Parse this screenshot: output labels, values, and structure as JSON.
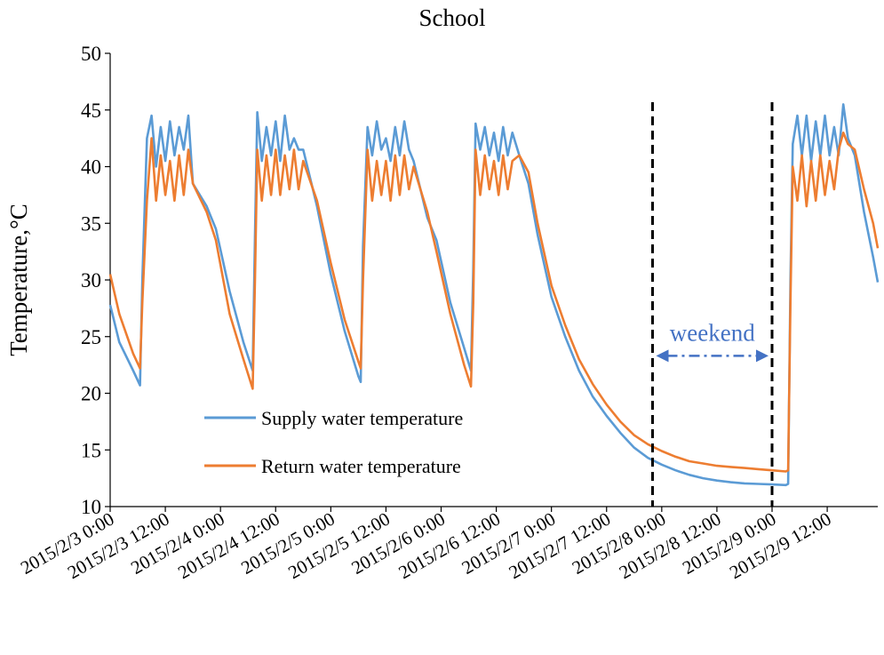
{
  "chart_data": {
    "type": "line",
    "title": "School",
    "ylabel": "Temperature,°C",
    "xlabel": "",
    "ylim": [
      10,
      50
    ],
    "yticks": [
      10,
      15,
      20,
      25,
      30,
      35,
      40,
      45,
      50
    ],
    "x_range": [
      "2015/2/3 0:00",
      "2015/2/9 23:00"
    ],
    "x_tick_step_hours": 12,
    "xtick_labels": [
      "2015/2/3 0:00",
      "2015/2/3 12:00",
      "2015/2/4 0:00",
      "2015/2/4 12:00",
      "2015/2/5 0:00",
      "2015/2/5 12:00",
      "2015/2/6 0:00",
      "2015/2/6 12:00",
      "2015/2/7 0:00",
      "2015/2/7 12:00",
      "2015/2/8 0:00",
      "2015/2/8 12:00",
      "2015/2/9 0:00",
      "2015/2/9 12:00"
    ],
    "grid": false,
    "legend_position": "lower-center",
    "series": [
      {
        "name": "Supply water temperature",
        "color": "#5B9BD5",
        "points": [
          [
            "2015/2/3 0:00",
            27.8
          ],
          [
            "2015/2/3 2:00",
            24.5
          ],
          [
            "2015/2/3 5:00",
            22.0
          ],
          [
            "2015/2/3 6:30",
            20.7
          ],
          [
            "2015/2/3 7:00",
            30.0
          ],
          [
            "2015/2/3 8:00",
            42.5
          ],
          [
            "2015/2/3 9:00",
            44.5
          ],
          [
            "2015/2/3 10:00",
            40.0
          ],
          [
            "2015/2/3 11:00",
            43.5
          ],
          [
            "2015/2/3 12:00",
            40.5
          ],
          [
            "2015/2/3 13:00",
            44.0
          ],
          [
            "2015/2/3 14:00",
            41.0
          ],
          [
            "2015/2/3 15:00",
            43.5
          ],
          [
            "2015/2/3 16:00",
            41.5
          ],
          [
            "2015/2/3 17:00",
            44.5
          ],
          [
            "2015/2/3 18:00",
            38.5
          ],
          [
            "2015/2/3 21:00",
            36.5
          ],
          [
            "2015/2/3 23:00",
            34.5
          ],
          [
            "2015/2/4 2:00",
            29.0
          ],
          [
            "2015/2/4 5:00",
            24.5
          ],
          [
            "2015/2/4 7:00",
            22.0
          ],
          [
            "2015/2/4 7:30",
            34.0
          ],
          [
            "2015/2/4 8:00",
            44.8
          ],
          [
            "2015/2/4 9:00",
            40.5
          ],
          [
            "2015/2/4 10:00",
            43.5
          ],
          [
            "2015/2/4 11:00",
            41.0
          ],
          [
            "2015/2/4 12:00",
            44.0
          ],
          [
            "2015/2/4 13:00",
            40.5
          ],
          [
            "2015/2/4 14:00",
            44.5
          ],
          [
            "2015/2/4 15:00",
            41.5
          ],
          [
            "2015/2/4 16:00",
            42.5
          ],
          [
            "2015/2/4 17:00",
            41.5
          ],
          [
            "2015/2/4 18:00",
            41.5
          ],
          [
            "2015/2/4 21:00",
            36.5
          ],
          [
            "2015/2/5 0:00",
            30.5
          ],
          [
            "2015/2/5 3:00",
            25.5
          ],
          [
            "2015/2/5 6:00",
            21.5
          ],
          [
            "2015/2/5 6:30",
            21.0
          ],
          [
            "2015/2/5 7:00",
            33.0
          ],
          [
            "2015/2/5 8:00",
            43.5
          ],
          [
            "2015/2/5 9:00",
            41.0
          ],
          [
            "2015/2/5 10:00",
            44.0
          ],
          [
            "2015/2/5 11:00",
            41.5
          ],
          [
            "2015/2/5 12:00",
            42.5
          ],
          [
            "2015/2/5 13:00",
            40.5
          ],
          [
            "2015/2/5 14:00",
            43.5
          ],
          [
            "2015/2/5 15:00",
            41.0
          ],
          [
            "2015/2/5 16:00",
            44.0
          ],
          [
            "2015/2/5 17:00",
            41.5
          ],
          [
            "2015/2/5 18:00",
            40.5
          ],
          [
            "2015/2/5 21:00",
            35.5
          ],
          [
            "2015/2/5 23:00",
            33.5
          ],
          [
            "2015/2/6 2:00",
            28.0
          ],
          [
            "2015/2/6 5:00",
            24.0
          ],
          [
            "2015/2/6 6:30",
            22.0
          ],
          [
            "2015/2/6 7:00",
            31.0
          ],
          [
            "2015/2/6 7:30",
            43.8
          ],
          [
            "2015/2/6 8:30",
            41.5
          ],
          [
            "2015/2/6 9:30",
            43.5
          ],
          [
            "2015/2/6 10:30",
            41.0
          ],
          [
            "2015/2/6 11:30",
            43.0
          ],
          [
            "2015/2/6 12:30",
            40.5
          ],
          [
            "2015/2/6 13:30",
            43.5
          ],
          [
            "2015/2/6 14:30",
            41.0
          ],
          [
            "2015/2/6 15:30",
            43.0
          ],
          [
            "2015/2/6 17:00",
            41.0
          ],
          [
            "2015/2/6 19:00",
            38.5
          ],
          [
            "2015/2/6 21:00",
            34.0
          ],
          [
            "2015/2/7 0:00",
            28.5
          ],
          [
            "2015/2/7 3:00",
            25.0
          ],
          [
            "2015/2/7 6:00",
            22.0
          ],
          [
            "2015/2/7 9:00",
            19.7
          ],
          [
            "2015/2/7 12:00",
            18.0
          ],
          [
            "2015/2/7 15:00",
            16.5
          ],
          [
            "2015/2/7 18:00",
            15.2
          ],
          [
            "2015/2/7 21:00",
            14.3
          ],
          [
            "2015/2/8 0:00",
            13.7
          ],
          [
            "2015/2/8 3:00",
            13.2
          ],
          [
            "2015/2/8 6:00",
            12.8
          ],
          [
            "2015/2/8 9:00",
            12.5
          ],
          [
            "2015/2/8 12:00",
            12.3
          ],
          [
            "2015/2/8 15:00",
            12.15
          ],
          [
            "2015/2/8 18:00",
            12.05
          ],
          [
            "2015/2/8 21:00",
            12.0
          ],
          [
            "2015/2/9 0:00",
            11.95
          ],
          [
            "2015/2/9 3:00",
            11.9
          ],
          [
            "2015/2/9 3:30",
            12.0
          ],
          [
            "2015/2/9 4:00",
            30.0
          ],
          [
            "2015/2/9 4:30",
            42.0
          ],
          [
            "2015/2/9 5:30",
            44.5
          ],
          [
            "2015/2/9 6:30",
            41.0
          ],
          [
            "2015/2/9 7:30",
            44.5
          ],
          [
            "2015/2/9 8:30",
            40.5
          ],
          [
            "2015/2/9 9:30",
            44.0
          ],
          [
            "2015/2/9 10:30",
            41.0
          ],
          [
            "2015/2/9 11:30",
            44.5
          ],
          [
            "2015/2/9 12:30",
            41.0
          ],
          [
            "2015/2/9 13:30",
            43.5
          ],
          [
            "2015/2/9 14:30",
            41.0
          ],
          [
            "2015/2/9 15:30",
            45.5
          ],
          [
            "2015/2/9 16:30",
            42.5
          ],
          [
            "2015/2/9 18:00",
            41.0
          ],
          [
            "2015/2/9 20:00",
            36.0
          ],
          [
            "2015/2/9 22:00",
            32.0
          ],
          [
            "2015/2/9 23:00",
            29.8
          ]
        ]
      },
      {
        "name": "Return water temperature",
        "color": "#ED7D31",
        "points": [
          [
            "2015/2/3 0:00",
            30.5
          ],
          [
            "2015/2/3 2:00",
            27.0
          ],
          [
            "2015/2/3 5:00",
            23.5
          ],
          [
            "2015/2/3 6:30",
            22.2
          ],
          [
            "2015/2/3 7:00",
            28.0
          ],
          [
            "2015/2/3 8:00",
            37.0
          ],
          [
            "2015/2/3 9:00",
            42.5
          ],
          [
            "2015/2/3 10:00",
            37.0
          ],
          [
            "2015/2/3 11:00",
            41.0
          ],
          [
            "2015/2/3 12:00",
            37.5
          ],
          [
            "2015/2/3 13:00",
            40.5
          ],
          [
            "2015/2/3 14:00",
            37.0
          ],
          [
            "2015/2/3 15:00",
            41.0
          ],
          [
            "2015/2/3 16:00",
            37.5
          ],
          [
            "2015/2/3 17:00",
            41.5
          ],
          [
            "2015/2/3 18:00",
            38.5
          ],
          [
            "2015/2/3 21:00",
            36.0
          ],
          [
            "2015/2/3 23:00",
            33.5
          ],
          [
            "2015/2/4 2:00",
            27.0
          ],
          [
            "2015/2/4 5:00",
            23.0
          ],
          [
            "2015/2/4 7:00",
            20.4
          ],
          [
            "2015/2/4 7:30",
            30.0
          ],
          [
            "2015/2/4 8:00",
            41.5
          ],
          [
            "2015/2/4 9:00",
            37.0
          ],
          [
            "2015/2/4 10:00",
            41.0
          ],
          [
            "2015/2/4 11:00",
            37.5
          ],
          [
            "2015/2/4 12:00",
            41.5
          ],
          [
            "2015/2/4 13:00",
            37.5
          ],
          [
            "2015/2/4 14:00",
            41.0
          ],
          [
            "2015/2/4 15:00",
            38.0
          ],
          [
            "2015/2/4 16:00",
            41.5
          ],
          [
            "2015/2/4 17:00",
            38.0
          ],
          [
            "2015/2/4 18:00",
            40.5
          ],
          [
            "2015/2/4 21:00",
            37.0
          ],
          [
            "2015/2/5 0:00",
            31.5
          ],
          [
            "2015/2/5 3:00",
            26.5
          ],
          [
            "2015/2/5 6:00",
            22.8
          ],
          [
            "2015/2/5 6:30",
            22.2
          ],
          [
            "2015/2/5 7:00",
            30.0
          ],
          [
            "2015/2/5 8:00",
            41.5
          ],
          [
            "2015/2/5 9:00",
            37.0
          ],
          [
            "2015/2/5 10:00",
            40.5
          ],
          [
            "2015/2/5 11:00",
            37.5
          ],
          [
            "2015/2/5 12:00",
            40.5
          ],
          [
            "2015/2/5 13:00",
            37.0
          ],
          [
            "2015/2/5 14:00",
            41.0
          ],
          [
            "2015/2/5 15:00",
            37.5
          ],
          [
            "2015/2/5 16:00",
            41.0
          ],
          [
            "2015/2/5 17:00",
            38.0
          ],
          [
            "2015/2/5 18:00",
            40.0
          ],
          [
            "2015/2/5 21:00",
            36.0
          ],
          [
            "2015/2/5 23:00",
            32.5
          ],
          [
            "2015/2/6 2:00",
            27.0
          ],
          [
            "2015/2/6 5:00",
            22.5
          ],
          [
            "2015/2/6 6:30",
            20.6
          ],
          [
            "2015/2/6 7:00",
            28.0
          ],
          [
            "2015/2/6 7:30",
            41.5
          ],
          [
            "2015/2/6 8:30",
            37.5
          ],
          [
            "2015/2/6 9:30",
            41.0
          ],
          [
            "2015/2/6 10:30",
            38.0
          ],
          [
            "2015/2/6 11:30",
            40.5
          ],
          [
            "2015/2/6 12:30",
            37.5
          ],
          [
            "2015/2/6 13:30",
            41.0
          ],
          [
            "2015/2/6 14:30",
            38.0
          ],
          [
            "2015/2/6 15:30",
            40.5
          ],
          [
            "2015/2/6 17:00",
            41.0
          ],
          [
            "2015/2/6 19:00",
            39.5
          ],
          [
            "2015/2/6 21:00",
            35.0
          ],
          [
            "2015/2/7 0:00",
            29.5
          ],
          [
            "2015/2/7 3:00",
            26.0
          ],
          [
            "2015/2/7 6:00",
            23.0
          ],
          [
            "2015/2/7 9:00",
            20.8
          ],
          [
            "2015/2/7 12:00",
            19.0
          ],
          [
            "2015/2/7 15:00",
            17.5
          ],
          [
            "2015/2/7 18:00",
            16.3
          ],
          [
            "2015/2/7 21:00",
            15.5
          ],
          [
            "2015/2/8 0:00",
            14.9
          ],
          [
            "2015/2/8 3:00",
            14.4
          ],
          [
            "2015/2/8 6:00",
            14.0
          ],
          [
            "2015/2/8 9:00",
            13.8
          ],
          [
            "2015/2/8 12:00",
            13.6
          ],
          [
            "2015/2/8 15:00",
            13.5
          ],
          [
            "2015/2/8 18:00",
            13.4
          ],
          [
            "2015/2/8 21:00",
            13.3
          ],
          [
            "2015/2/9 0:00",
            13.2
          ],
          [
            "2015/2/9 3:00",
            13.1
          ],
          [
            "2015/2/9 3:30",
            13.2
          ],
          [
            "2015/2/9 4:00",
            28.0
          ],
          [
            "2015/2/9 4:30",
            40.0
          ],
          [
            "2015/2/9 5:30",
            37.0
          ],
          [
            "2015/2/9 6:30",
            41.0
          ],
          [
            "2015/2/9 7:30",
            36.5
          ],
          [
            "2015/2/9 8:30",
            40.5
          ],
          [
            "2015/2/9 9:30",
            37.0
          ],
          [
            "2015/2/9 10:30",
            41.0
          ],
          [
            "2015/2/9 11:30",
            37.5
          ],
          [
            "2015/2/9 12:30",
            40.5
          ],
          [
            "2015/2/9 13:30",
            38.0
          ],
          [
            "2015/2/9 14:30",
            41.5
          ],
          [
            "2015/2/9 15:30",
            43.0
          ],
          [
            "2015/2/9 16:30",
            42.0
          ],
          [
            "2015/2/9 18:00",
            41.5
          ],
          [
            "2015/2/9 20:00",
            38.0
          ],
          [
            "2015/2/9 22:00",
            35.0
          ],
          [
            "2015/2/9 23:00",
            32.8
          ]
        ]
      }
    ],
    "annotations": [
      {
        "type": "vline",
        "x": "2015/2/7 22:00",
        "style": "dashed",
        "color": "#000000"
      },
      {
        "type": "vline",
        "x": "2015/2/9 0:00",
        "style": "dashed",
        "color": "#000000"
      },
      {
        "type": "span_arrow",
        "from": "2015/2/7 22:00",
        "to": "2015/2/9 0:00",
        "y": 23.3,
        "label": "weekend",
        "color": "#4472C4",
        "style": "dash-dot"
      }
    ]
  }
}
